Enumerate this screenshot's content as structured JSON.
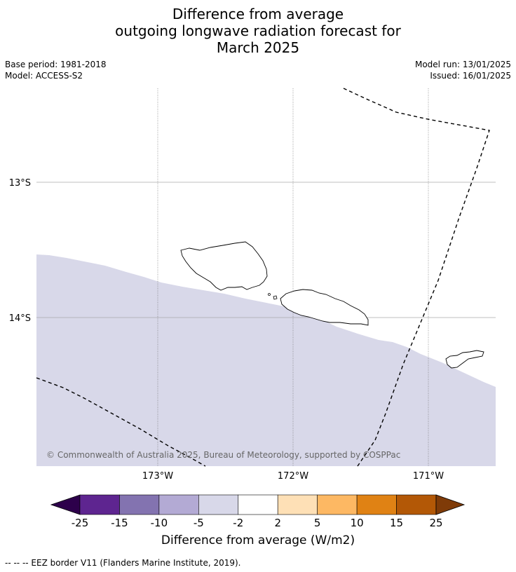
{
  "title": {
    "line1": "Difference from average",
    "line2": "outgoing longwave radiation forecast for",
    "line3": "March 2025"
  },
  "meta": {
    "base_period": "Base period: 1981-2018",
    "model": "Model: ACCESS-S2",
    "model_run": "Model run: 13/01/2025",
    "issued": "Issued: 16/01/2025"
  },
  "map": {
    "lat_labels": [
      "13°S",
      "14°S"
    ],
    "lon_labels": [
      "173°W",
      "172°W",
      "171°W"
    ],
    "copyright": "© Commonwealth of Australia 2025, Bureau of Meteorology, supported by COSPPac",
    "fill_color": "#d8d8e9",
    "land_outline_color": "#000000"
  },
  "colorbar": {
    "ticks": [
      "-25",
      "-15",
      "-10",
      "-5",
      "-2",
      "2",
      "5",
      "10",
      "15",
      "25"
    ],
    "colors": [
      "#2d004b",
      "#5e2590",
      "#8373b0",
      "#b3aad4",
      "#d8d8e9",
      "#ffffff",
      "#fee0b6",
      "#fdb863",
      "#e08214",
      "#b35806",
      "#7f3b08"
    ],
    "label": "Difference from average (W/m2)"
  },
  "footnote": "--  --  -- EEZ border V11 (Flanders Marine Institute, 2019)."
}
